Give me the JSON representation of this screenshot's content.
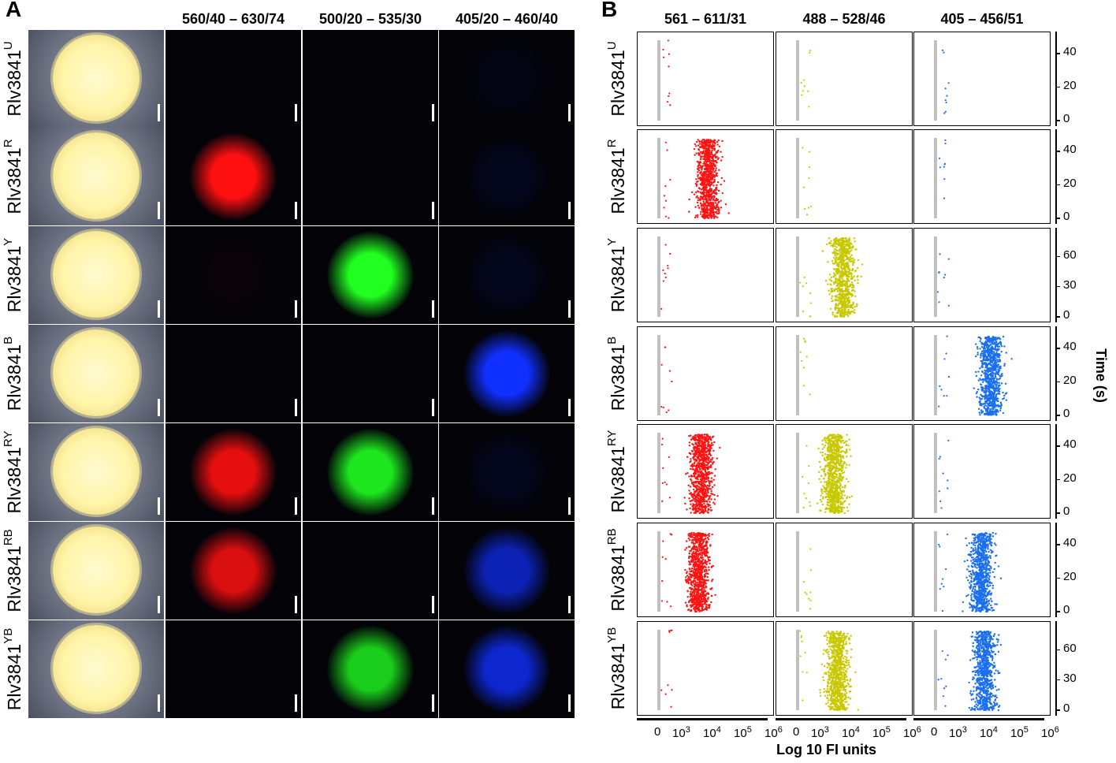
{
  "panels": {
    "a": {
      "letter": "A"
    },
    "b": {
      "letter": "B"
    }
  },
  "panel_a": {
    "columns": [
      "",
      "560/40 – 630/74",
      "500/20 – 535/30",
      "405/20 – 460/40"
    ],
    "rows": [
      {
        "base": "Rlv3841",
        "sup": "U"
      },
      {
        "base": "Rlv3841",
        "sup": "R"
      },
      {
        "base": "Rlv3841",
        "sup": "Y"
      },
      {
        "base": "Rlv3841",
        "sup": "B"
      },
      {
        "base": "Rlv3841",
        "sup": "RY"
      },
      {
        "base": "Rlv3841",
        "sup": "RB"
      },
      {
        "base": "Rlv3841",
        "sup": "YB"
      }
    ],
    "fluorescence": [
      [
        0,
        0,
        0.05
      ],
      [
        1,
        0,
        0.08
      ],
      [
        0.03,
        1,
        0.08
      ],
      [
        0,
        0,
        1
      ],
      [
        0.9,
        0.9,
        0.08
      ],
      [
        0.85,
        0,
        0.7
      ],
      [
        0,
        0.8,
        0.8
      ]
    ],
    "channel_colors": [
      "#ff1010",
      "#20ff20",
      "#1030ff"
    ]
  },
  "panel_b": {
    "columns": [
      "561 – 611/31",
      "488 – 528/46",
      "405 – 456/51"
    ],
    "series_colors": [
      "#ff1212",
      "#c8c800",
      "#1a6ef0"
    ],
    "background_color": "#c0c0c0",
    "x_ticks": [
      "0",
      "10",
      "10",
      "10",
      "10"
    ],
    "x_tick_exps": [
      "",
      "3",
      "4",
      "5",
      "6"
    ],
    "xlabel": "Log 10 FI units",
    "ylabel": "Time (s)"
  },
  "chart_data": {
    "type": "scatter",
    "xlabel": "Log 10 FI units",
    "ylabel": "Time (s)",
    "x_scale": "log",
    "x_ticks": [
      "0",
      "10^3",
      "10^4",
      "10^5",
      "10^6"
    ],
    "columns": [
      "561 – 611/31",
      "488 – 528/46",
      "405 – 456/51"
    ],
    "rows": [
      {
        "strain": "Rlv3841U",
        "ylim": [
          0,
          48
        ],
        "y_ticks": [
          0,
          20,
          40
        ],
        "positive": [
          false,
          false,
          false
        ]
      },
      {
        "strain": "Rlv3841R",
        "ylim": [
          0,
          48
        ],
        "y_ticks": [
          0,
          20,
          40
        ],
        "positive": [
          true,
          false,
          false
        ],
        "center_log10": [
          4.0,
          null,
          null
        ]
      },
      {
        "strain": "Rlv3841Y",
        "ylim": [
          0,
          80
        ],
        "y_ticks": [
          0,
          30,
          60
        ],
        "positive": [
          false,
          true,
          false
        ],
        "center_log10": [
          null,
          3.9,
          null
        ]
      },
      {
        "strain": "Rlv3841B",
        "ylim": [
          0,
          48
        ],
        "y_ticks": [
          0,
          20,
          40
        ],
        "positive": [
          false,
          false,
          true
        ],
        "center_log10": [
          null,
          null,
          4.2
        ]
      },
      {
        "strain": "Rlv3841RY",
        "ylim": [
          0,
          48
        ],
        "y_ticks": [
          0,
          20,
          40
        ],
        "positive": [
          true,
          true,
          false
        ],
        "center_log10": [
          3.8,
          3.6,
          null
        ]
      },
      {
        "strain": "Rlv3841RB",
        "ylim": [
          0,
          48
        ],
        "y_ticks": [
          0,
          20,
          40
        ],
        "positive": [
          true,
          false,
          true
        ],
        "center_log10": [
          3.7,
          null,
          3.9
        ]
      },
      {
        "strain": "Rlv3841YB",
        "ylim": [
          0,
          80
        ],
        "y_ticks": [
          0,
          30,
          60
        ],
        "positive": [
          false,
          true,
          true
        ],
        "center_log10": [
          null,
          3.7,
          4.0
        ]
      }
    ]
  }
}
